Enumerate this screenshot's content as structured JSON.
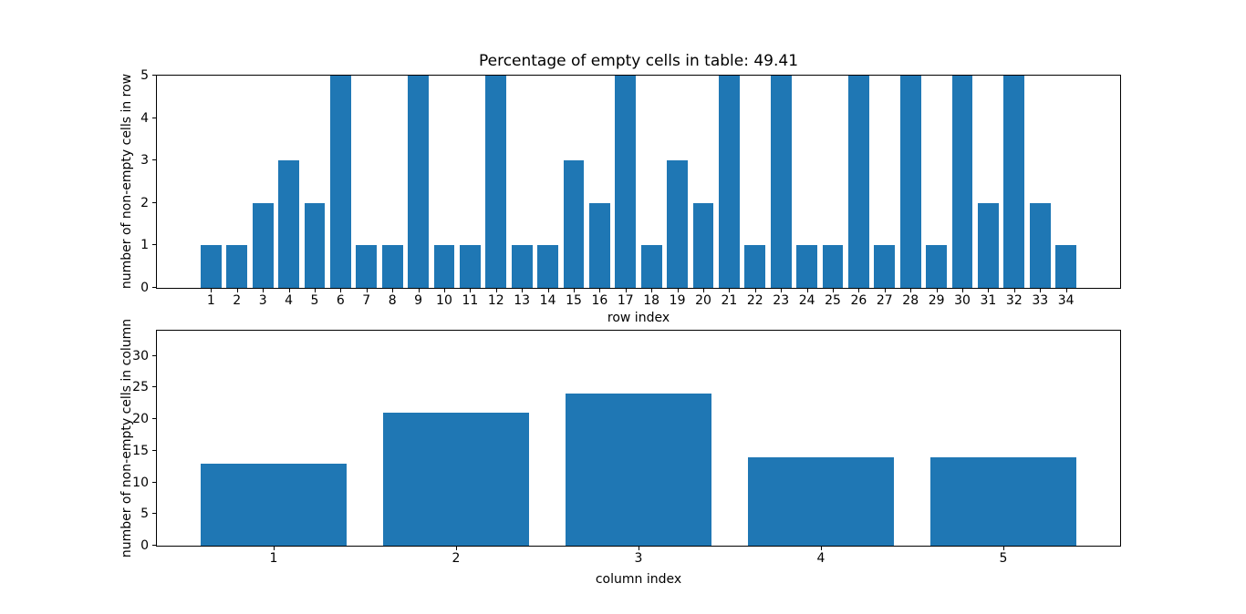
{
  "figure": {
    "background": "#ffffff",
    "bar_color": "#1f77b4"
  },
  "chart_data": [
    {
      "type": "bar",
      "title": "Percentage of empty cells in table: 49.41",
      "xlabel": "row index",
      "ylabel": "number of non-empty cells in row",
      "x": [
        1,
        2,
        3,
        4,
        5,
        6,
        7,
        8,
        9,
        10,
        11,
        12,
        13,
        14,
        15,
        16,
        17,
        18,
        19,
        20,
        21,
        22,
        23,
        24,
        25,
        26,
        27,
        28,
        29,
        30,
        31,
        32,
        33,
        34
      ],
      "values": [
        1,
        1,
        2,
        3,
        2,
        5,
        1,
        1,
        5,
        1,
        1,
        5,
        1,
        1,
        3,
        2,
        5,
        1,
        3,
        2,
        5,
        1,
        5,
        1,
        1,
        5,
        1,
        5,
        1,
        5,
        2,
        5,
        2,
        1
      ],
      "bar_width": 0.8,
      "xlim": [
        -1.09,
        36.09
      ],
      "ylim": [
        0,
        5
      ],
      "yticks": [
        0,
        1,
        2,
        3,
        4,
        5
      ],
      "grid": false,
      "legend": null,
      "color": "#1f77b4"
    },
    {
      "type": "bar",
      "title": "",
      "xlabel": "column index",
      "ylabel": "number of non-empty cells in column",
      "x": [
        1,
        2,
        3,
        4,
        5
      ],
      "values": [
        13,
        21,
        24,
        14,
        14
      ],
      "bar_width": 0.8,
      "xlim": [
        0.36,
        5.64
      ],
      "ylim": [
        0,
        34
      ],
      "yticks": [
        0,
        5,
        10,
        15,
        20,
        25,
        30
      ],
      "grid": false,
      "legend": null,
      "color": "#1f77b4"
    }
  ]
}
